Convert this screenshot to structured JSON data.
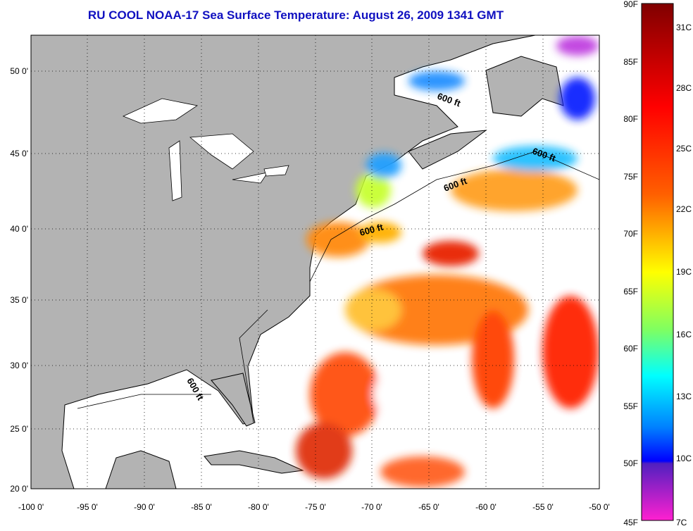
{
  "title": "RU COOL  NOAA-17  Sea Surface Temperature:  August 26, 2009 1341 GMT",
  "map": {
    "lat_ticks": [
      "50 0'",
      "45 0'",
      "40 0'",
      "35 0'",
      "30 0'",
      "25 0'",
      "20 0'"
    ],
    "lon_ticks": [
      "-100 0'",
      "-95 0'",
      "-90 0'",
      "-85 0'",
      "-80 0'",
      "-75 0'",
      "-70 0'",
      "-65 0'",
      "-60 0'",
      "-55 0'",
      "-50 0'"
    ],
    "lat_range": [
      20,
      52.5
    ],
    "lon_range": [
      -100,
      -50
    ],
    "contour_labels": [
      "600 ft",
      "600 ft",
      "600 ft",
      "600 ft",
      "600 ft"
    ],
    "colors": {
      "land": "#b3b3b3",
      "cloud": "#ffffff"
    }
  },
  "colorbar": {
    "fahrenheit": [
      "90F",
      "85F",
      "80F",
      "75F",
      "70F",
      "65F",
      "60F",
      "55F",
      "50F",
      "45F"
    ],
    "celsius": [
      "31C",
      "28C",
      "25C",
      "22C",
      "19C",
      "16C",
      "13C",
      "10C",
      "7C"
    ],
    "range_f": [
      45,
      90
    ]
  }
}
